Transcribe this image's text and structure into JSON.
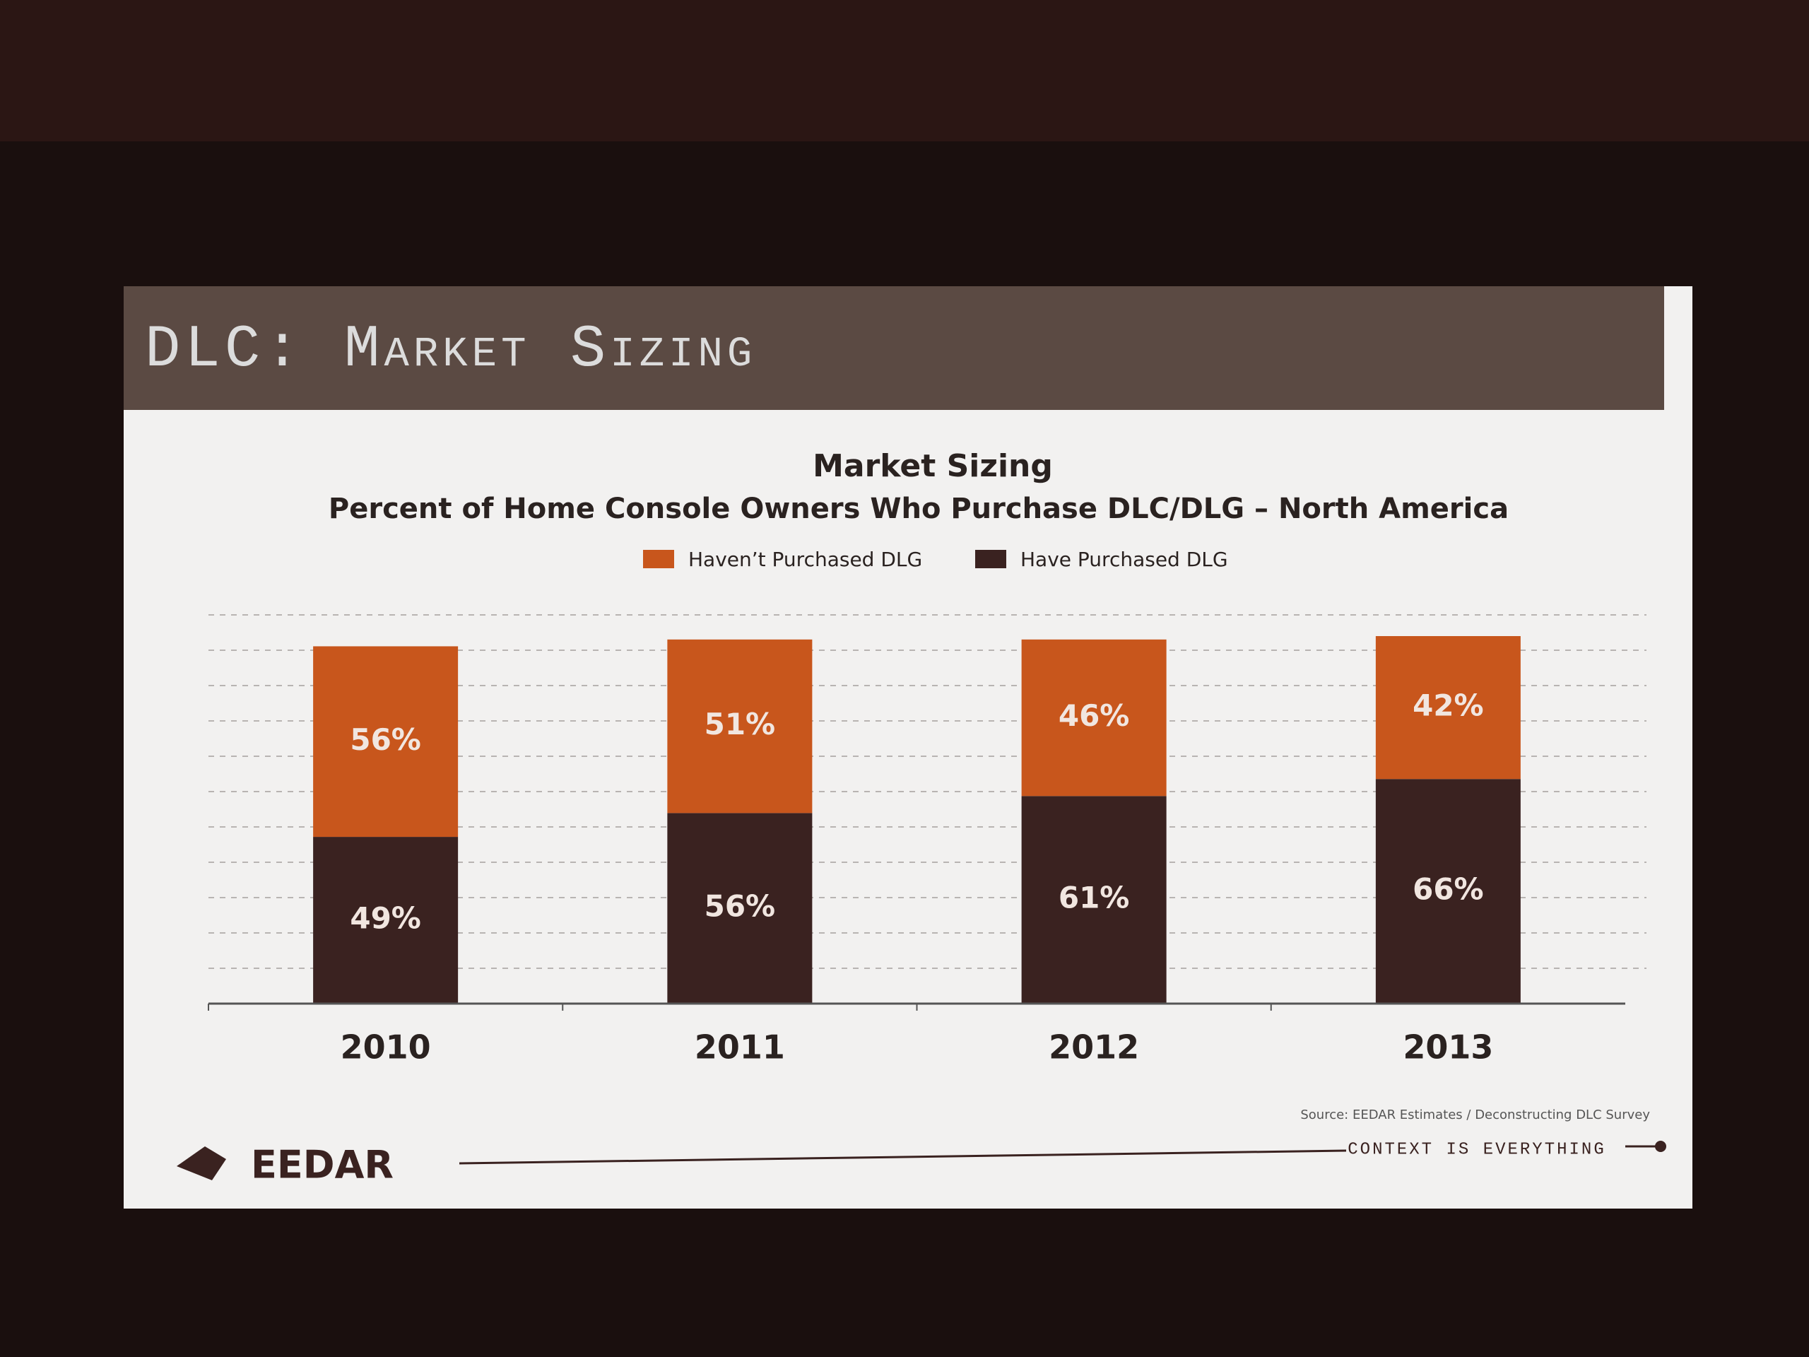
{
  "slide": {
    "header": "DLC: Market Sizing",
    "source": "Source: EEDAR Estimates / Deconstructing DLC Survey",
    "logo": "EEDAR",
    "tagline": "CONTEXT IS EVERYTHING"
  },
  "chart_data": {
    "type": "stacked-bar",
    "title": "Market Sizing",
    "subtitle": "Percent of Home Console Owners Who Purchase DLC/DLG – North America",
    "categories": [
      "2010",
      "2011",
      "2012",
      "2013"
    ],
    "series": [
      {
        "name": "Haven’t Purchased DLG",
        "color": "#c8561c",
        "values": [
          56,
          51,
          46,
          42
        ],
        "value_labels": [
          "56%",
          "51%",
          "46%",
          "42%"
        ]
      },
      {
        "name": "Have Purchased DLG",
        "color": "#3a2220",
        "values": [
          49,
          56,
          61,
          66
        ],
        "value_labels": [
          "49%",
          "56%",
          "61%",
          "66%"
        ]
      }
    ],
    "grid": true
  }
}
